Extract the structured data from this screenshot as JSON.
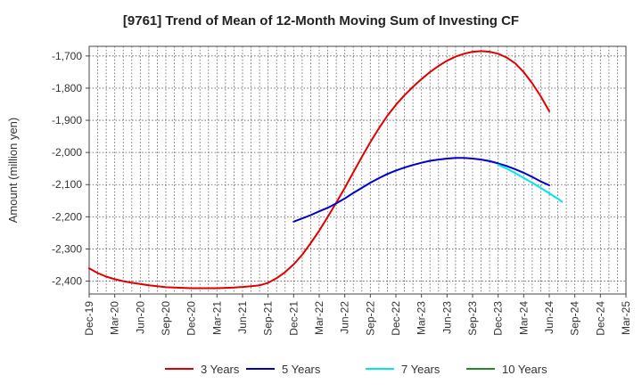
{
  "chart_data": {
    "type": "line",
    "title": "[9761]  Trend of Mean of 12-Month Moving Sum of Investing CF",
    "xlabel": "",
    "ylabel": "Amount (million yen)",
    "ylim": [
      -2440,
      -1670
    ],
    "yticks": [
      -1700,
      -1800,
      -1900,
      -2000,
      -2100,
      -2200,
      -2300,
      -2400
    ],
    "ytick_labels": [
      "-1,700",
      "-1,800",
      "-1,900",
      "-2,000",
      "-2,100",
      "-2,200",
      "-2,300",
      "-2,400"
    ],
    "x_tick_labels": [
      "Dec-19",
      "Mar-20",
      "Jun-20",
      "Sep-20",
      "Dec-20",
      "Mar-21",
      "Jun-21",
      "Sep-21",
      "Dec-21",
      "Mar-22",
      "Jun-22",
      "Sep-22",
      "Dec-22",
      "Mar-23",
      "Jun-23",
      "Sep-23",
      "Dec-23",
      "Mar-24",
      "Jun-24",
      "Sep-24",
      "Dec-24",
      "Mar-25"
    ],
    "x_unit": "months since Dec-19",
    "x_range": [
      0,
      63
    ],
    "grid": true,
    "legend_position": "bottom",
    "series": [
      {
        "name": "3 Years",
        "color": "#e00000",
        "points": [
          [
            0,
            -2360
          ],
          [
            1,
            -2375
          ],
          [
            2,
            -2386
          ],
          [
            3,
            -2394
          ],
          [
            4,
            -2400
          ],
          [
            5,
            -2405
          ],
          [
            6,
            -2409
          ],
          [
            7,
            -2413
          ],
          [
            8,
            -2416
          ],
          [
            9,
            -2419
          ],
          [
            10,
            -2420
          ],
          [
            11,
            -2421
          ],
          [
            12,
            -2422
          ],
          [
            13,
            -2422
          ],
          [
            14,
            -2422
          ],
          [
            15,
            -2422
          ],
          [
            16,
            -2421
          ],
          [
            17,
            -2420
          ],
          [
            18,
            -2418
          ],
          [
            19,
            -2416
          ],
          [
            20,
            -2413
          ],
          [
            21,
            -2405
          ],
          [
            22,
            -2391
          ],
          [
            23,
            -2372
          ],
          [
            24,
            -2348
          ],
          [
            25,
            -2318
          ],
          [
            26,
            -2282
          ],
          [
            27,
            -2243
          ],
          [
            28,
            -2200
          ],
          [
            29,
            -2156
          ],
          [
            30,
            -2110
          ],
          [
            31,
            -2062
          ],
          [
            32,
            -2014
          ],
          [
            33,
            -1968
          ],
          [
            34,
            -1925
          ],
          [
            35,
            -1886
          ],
          [
            36,
            -1852
          ],
          [
            37,
            -1822
          ],
          [
            38,
            -1796
          ],
          [
            39,
            -1772
          ],
          [
            40,
            -1750
          ],
          [
            41,
            -1731
          ],
          [
            42,
            -1715
          ],
          [
            43,
            -1702
          ],
          [
            44,
            -1693
          ],
          [
            45,
            -1687
          ],
          [
            46,
            -1685
          ],
          [
            47,
            -1687
          ],
          [
            48,
            -1693
          ],
          [
            49,
            -1705
          ],
          [
            50,
            -1723
          ],
          [
            51,
            -1750
          ],
          [
            52,
            -1785
          ],
          [
            53,
            -1825
          ],
          [
            54,
            -1872
          ]
        ]
      },
      {
        "name": "5 Years",
        "color": "#0000cc",
        "points": [
          [
            24,
            -2215
          ],
          [
            25,
            -2205
          ],
          [
            26,
            -2195
          ],
          [
            27,
            -2183
          ],
          [
            28,
            -2172
          ],
          [
            29,
            -2158
          ],
          [
            30,
            -2143
          ],
          [
            31,
            -2126
          ],
          [
            32,
            -2110
          ],
          [
            33,
            -2094
          ],
          [
            34,
            -2080
          ],
          [
            35,
            -2067
          ],
          [
            36,
            -2056
          ],
          [
            37,
            -2047
          ],
          [
            38,
            -2039
          ],
          [
            39,
            -2032
          ],
          [
            40,
            -2026
          ],
          [
            41,
            -2022
          ],
          [
            42,
            -2019
          ],
          [
            43,
            -2017
          ],
          [
            44,
            -2017
          ],
          [
            45,
            -2019
          ],
          [
            46,
            -2022
          ],
          [
            47,
            -2027
          ],
          [
            48,
            -2034
          ],
          [
            49,
            -2042
          ],
          [
            50,
            -2052
          ],
          [
            51,
            -2063
          ],
          [
            52,
            -2076
          ],
          [
            53,
            -2090
          ],
          [
            54,
            -2102
          ]
        ]
      },
      {
        "name": "7 Years",
        "color": "#00e5ee",
        "points": [
          [
            48,
            -2038
          ],
          [
            49,
            -2050
          ],
          [
            50,
            -2064
          ],
          [
            51,
            -2079
          ],
          [
            52,
            -2094
          ],
          [
            53,
            -2110
          ],
          [
            54,
            -2127
          ],
          [
            55,
            -2144
          ],
          [
            55.5,
            -2153
          ]
        ]
      },
      {
        "name": "10 Years",
        "color": "#228B22",
        "points": []
      }
    ]
  }
}
